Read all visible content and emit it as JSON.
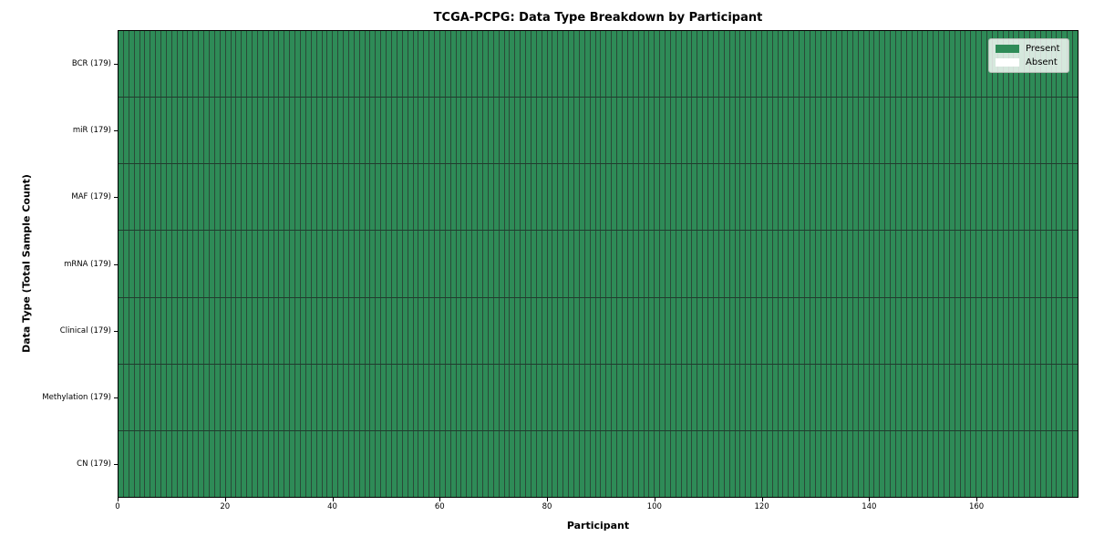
{
  "title": "TCGA-PCPG: Data Type Breakdown by Participant",
  "xlabel": "Participant",
  "ylabel": "Data Type (Total Sample Count)",
  "legend": {
    "present_label": "Present",
    "absent_label": "Absent"
  },
  "colors": {
    "present": "#2e8b57",
    "absent": "#ffffff",
    "cell_grid_line": "#2a4a38",
    "row_separator_line": "#203d2e",
    "plot_border": "#000000",
    "legend_background": "rgba(255,255,255,0.8)",
    "legend_border": "#b4bcb4"
  },
  "x_ticks": [
    0,
    20,
    40,
    60,
    80,
    100,
    120,
    140,
    160
  ],
  "chart_data": {
    "type": "heatmap",
    "title": "TCGA-PCPG: Data Type Breakdown by Participant",
    "xlabel": "Participant",
    "ylabel": "Data Type (Total Sample Count)",
    "x_range": [
      0,
      179
    ],
    "n_participants": 179,
    "x_tick_labels": [
      "0",
      "20",
      "40",
      "60",
      "80",
      "100",
      "120",
      "140",
      "160"
    ],
    "rows": [
      {
        "label": "BCR (179)",
        "data_type": "BCR",
        "total_samples": 179,
        "present": 179,
        "absent": 0
      },
      {
        "label": "miR (179)",
        "data_type": "miR",
        "total_samples": 179,
        "present": 179,
        "absent": 0
      },
      {
        "label": "MAF (179)",
        "data_type": "MAF",
        "total_samples": 179,
        "present": 179,
        "absent": 0
      },
      {
        "label": "mRNA (179)",
        "data_type": "mRNA",
        "total_samples": 179,
        "present": 179,
        "absent": 0
      },
      {
        "label": "Clinical (179)",
        "data_type": "Clinical",
        "total_samples": 179,
        "present": 179,
        "absent": 0
      },
      {
        "label": "Methylation (179)",
        "data_type": "Methylation",
        "total_samples": 179,
        "present": 179,
        "absent": 0
      },
      {
        "label": "CN (179)",
        "data_type": "CN",
        "total_samples": 179,
        "present": 179,
        "absent": 0
      }
    ],
    "legend_entries": [
      "Present",
      "Absent"
    ],
    "legend_position": "upper right",
    "grid": true
  }
}
